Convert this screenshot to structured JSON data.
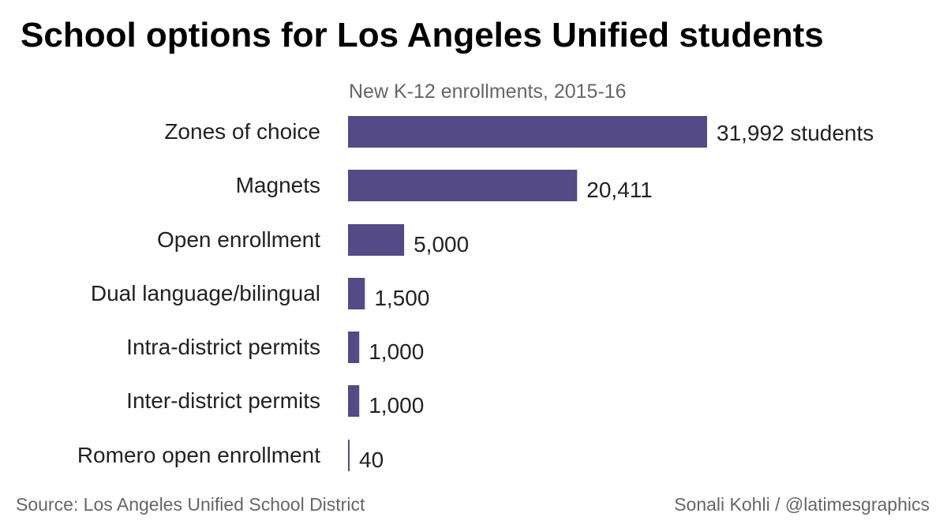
{
  "title": "School options for Los Angeles Unified students",
  "chart_data": {
    "type": "bar",
    "orientation": "horizontal",
    "subtitle": "New K-12 enrollments, 2015-16",
    "categories": [
      "Zones of choice",
      "Magnets",
      "Open enrollment",
      "Dual language/bilingual",
      "Intra-district permits",
      "Inter-district permits",
      "Romero open enrollment"
    ],
    "values": [
      31992,
      20411,
      5000,
      1500,
      1000,
      1000,
      40
    ],
    "value_labels": [
      "31,992 students",
      "20,411",
      "5,000",
      "1,500",
      "1,000",
      "1,000",
      "40"
    ],
    "xlim": [
      0,
      31992
    ],
    "grid": false,
    "legend": "none"
  },
  "colors": {
    "bar": "#544a85",
    "title": "#000000",
    "label": "#222222",
    "subtitle": "#666666",
    "footer": "#666666"
  },
  "footer": {
    "source": "Source: Los Angeles Unified School District",
    "credit": "Sonali Kohli / @latimesgraphics"
  }
}
